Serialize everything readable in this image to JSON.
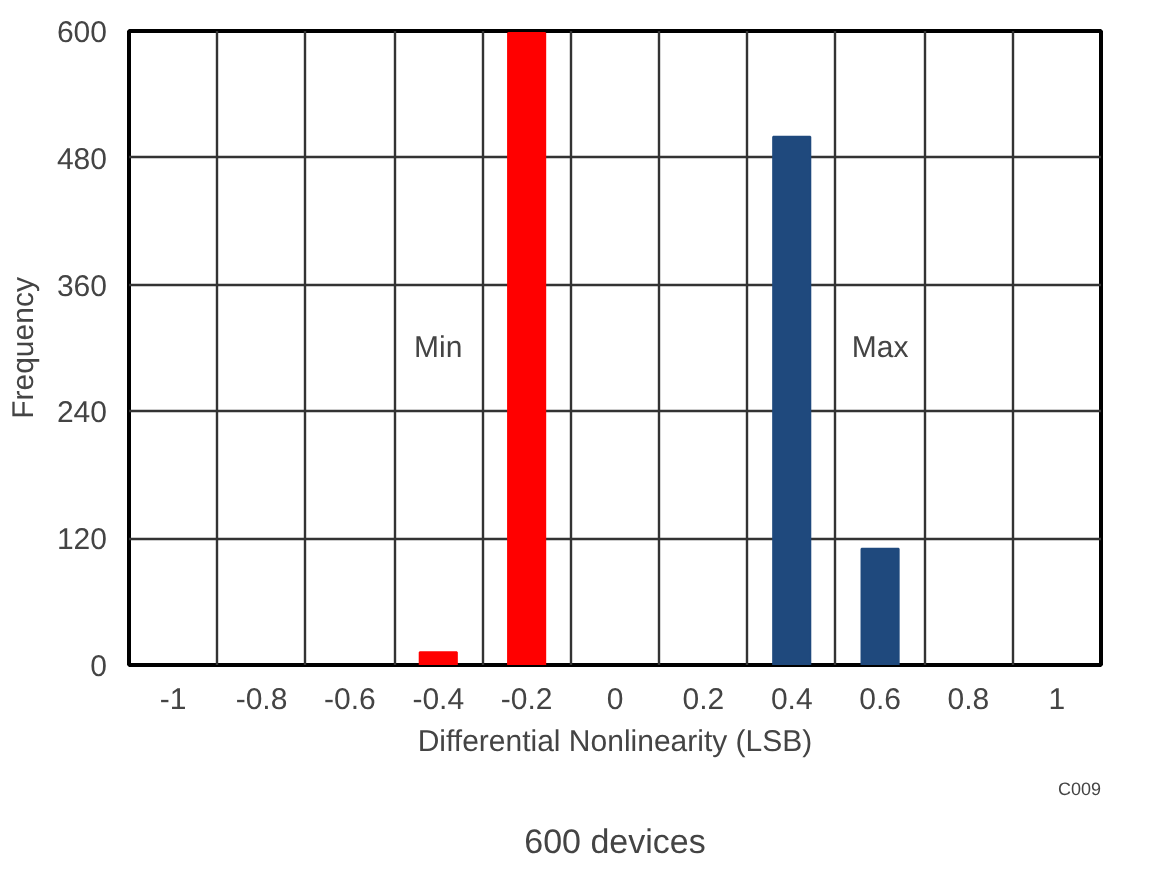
{
  "chart_data": {
    "type": "bar",
    "xlabel": "Differential Nonlinearity (LSB)",
    "ylabel": "Frequency",
    "categories": [
      "-1",
      "-0.8",
      "-0.6",
      "-0.4",
      "-0.2",
      "0",
      "0.2",
      "0.4",
      "0.6",
      "0.8",
      "1"
    ],
    "series": [
      {
        "name": "Min",
        "color": "#ff0000",
        "values": [
          null,
          null,
          null,
          12,
          598,
          null,
          null,
          null,
          null,
          null,
          null
        ]
      },
      {
        "name": "Max",
        "color": "#1f497d",
        "values": [
          null,
          null,
          null,
          null,
          null,
          null,
          null,
          500,
          110,
          null,
          null
        ]
      }
    ],
    "ylim": [
      0,
      600
    ],
    "yticks": [
      0,
      120,
      240,
      360,
      480,
      600
    ],
    "grid": true,
    "legend": false,
    "annotations": [
      "C009",
      "600 devices"
    ]
  }
}
